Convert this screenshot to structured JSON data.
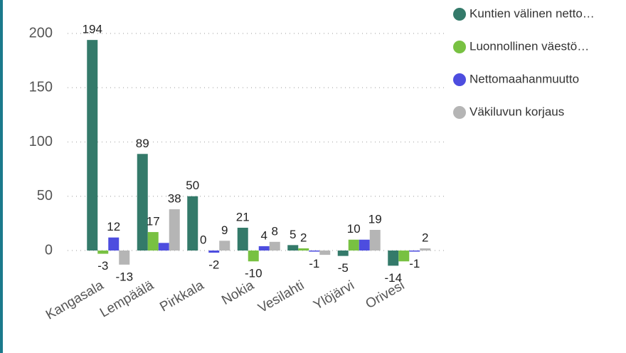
{
  "chart_data": {
    "type": "bar",
    "categories": [
      "Kangasala",
      "Lempäälä",
      "Pirkkala",
      "Nokia",
      "Vesilahti",
      "Ylöjärvi",
      "Orivesi"
    ],
    "series": [
      {
        "name": "Kuntien välinen netto…",
        "color": "#347a6a",
        "values": [
          194,
          89,
          50,
          21,
          5,
          -5,
          -14
        ],
        "value_labels": [
          "194",
          "89",
          "50",
          "21",
          "5",
          "-5",
          "-14"
        ]
      },
      {
        "name": "Luonnollinen väestö…",
        "color": "#78c142",
        "values": [
          -3,
          17,
          0,
          -10,
          2,
          10,
          -10
        ],
        "value_labels": [
          "-3",
          "17",
          "0",
          "-10",
          "2",
          "10",
          null
        ]
      },
      {
        "name": "Nettomaahanmuutto",
        "color": "#4d4ddf",
        "values": [
          12,
          7,
          -2,
          4,
          -1,
          10,
          -1
        ],
        "value_labels": [
          "12",
          null,
          "-2",
          "4",
          "-1",
          null,
          "-1"
        ]
      },
      {
        "name": "Väkiluvun korjaus",
        "color": "#b5b5b5",
        "values": [
          -13,
          38,
          9,
          8,
          -4,
          19,
          2
        ],
        "value_labels": [
          "-13",
          "38",
          "9",
          "8",
          null,
          "19",
          "2"
        ]
      }
    ],
    "ylim": [
      -20,
      210
    ],
    "yticks": [
      0,
      50,
      100,
      150,
      200
    ],
    "grid": true,
    "legend": "top-right"
  }
}
